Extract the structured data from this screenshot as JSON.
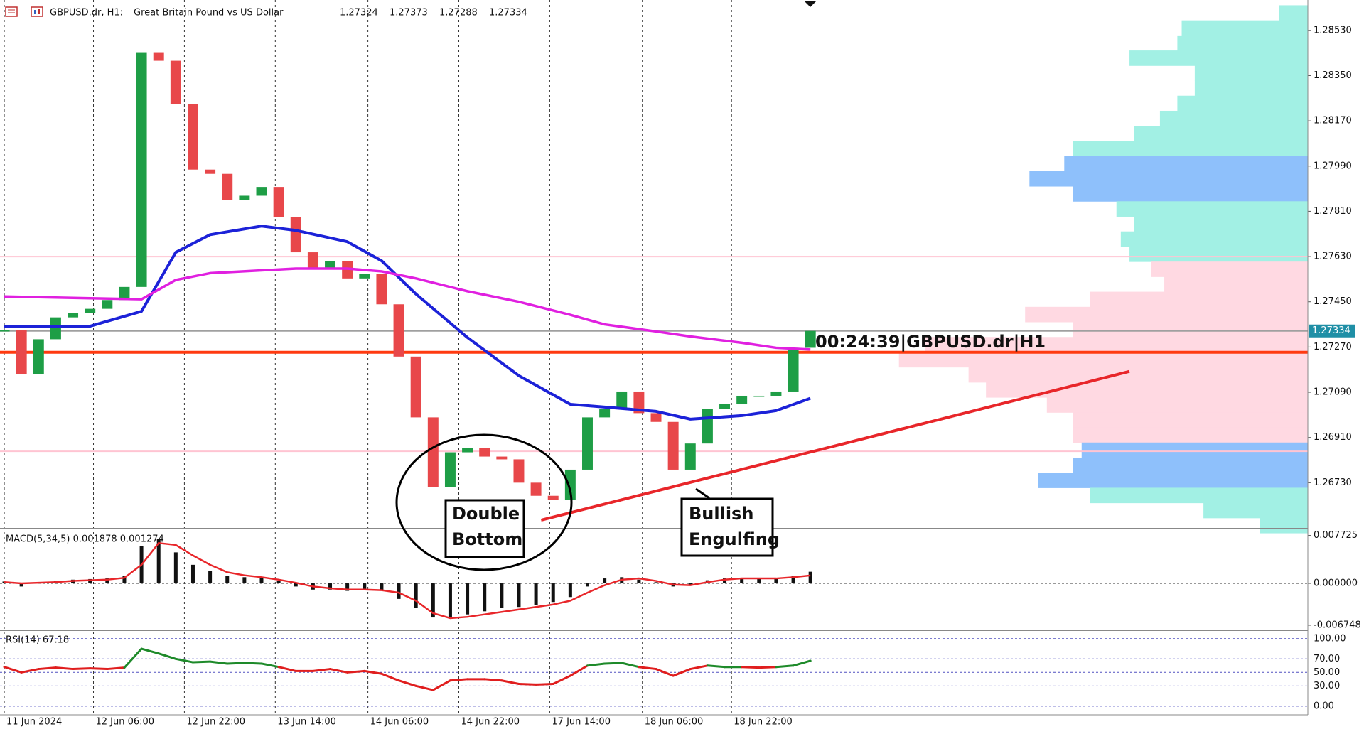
{
  "chart_data": {
    "type": "candlestick",
    "header": {
      "symbol": "GBPUSD.dr, H1:",
      "description": "Great Britain Pound vs US Dollar",
      "ohlc": [
        1.27324,
        1.27373,
        1.27288,
        1.27334
      ]
    },
    "close": [
      1.27336,
      1.27163,
      1.27301,
      1.27388,
      1.27405,
      1.27422,
      1.27457,
      1.27509,
      1.28443,
      1.28409,
      1.28236,
      1.27976,
      1.27959,
      1.27855,
      1.27872,
      1.27907,
      1.27786,
      1.27647,
      1.27578,
      1.27613,
      1.27543,
      1.27561,
      1.2744,
      1.27232,
      1.2699,
      1.26713,
      1.26851,
      1.26869,
      1.26834,
      1.26823,
      1.2673,
      1.26678,
      1.26661,
      1.26782,
      1.2699,
      1.27024,
      1.27093,
      1.27007,
      1.26972,
      1.26782,
      1.26886,
      1.27024,
      1.27042,
      1.27076,
      1.27076,
      1.27093,
      1.27267,
      1.27334
    ],
    "up_color": "#1e9e46",
    "down_color": "#e8474a",
    "series": [
      {
        "color": "#1c22d8",
        "x": [
          0,
          5,
          8,
          10,
          12,
          15,
          17,
          20,
          22,
          24,
          27,
          30,
          33,
          35,
          38,
          40,
          43,
          45,
          47
        ],
        "values": [
          1.27353,
          1.27353,
          1.27412,
          1.27647,
          1.27717,
          1.27751,
          1.27734,
          1.27689,
          1.27613,
          1.27481,
          1.27308,
          1.27156,
          1.27042,
          1.27031,
          1.27014,
          1.26983,
          1.26997,
          1.27017,
          1.27066
        ]
      },
      {
        "color": "#e020e0",
        "x": [
          0,
          5,
          8,
          10,
          12,
          15,
          17,
          20,
          22,
          24,
          27,
          30,
          33,
          35,
          38,
          40,
          43,
          45,
          47
        ],
        "values": [
          1.27471,
          1.27464,
          1.2746,
          1.27537,
          1.27564,
          1.27575,
          1.27582,
          1.27582,
          1.27571,
          1.27543,
          1.27492,
          1.2745,
          1.27398,
          1.2736,
          1.27332,
          1.27312,
          1.27287,
          1.27267,
          1.2726
        ]
      }
    ],
    "levels": [
      {
        "value": 1.2763,
        "color": "#ffc4d2",
        "thick": false
      },
      {
        "value": 1.26855,
        "color": "#ffc4d2",
        "thick": false
      },
      {
        "value": 1.27249,
        "color": "#ff3a10",
        "thick": true
      },
      {
        "value": 1.27334,
        "color": "#a0a0a0",
        "thick": false
      }
    ],
    "trendline": {
      "x": [
        31.3,
        65.6
      ],
      "values": [
        1.26581,
        1.27173
      ],
      "color": "#e8262a"
    },
    "profile": {
      "levels": [
        1.286,
        1.2854,
        1.2848,
        1.2842,
        1.2836,
        1.283,
        1.2824,
        1.2818,
        1.2812,
        1.2806,
        1.28,
        1.2794,
        1.2788,
        1.2782,
        1.2776,
        1.277,
        1.2764,
        1.2758,
        1.2752,
        1.2746,
        1.274,
        1.2734,
        1.2728,
        1.2722,
        1.2716,
        1.271,
        1.2704,
        1.2698,
        1.2692,
        1.2686,
        1.268,
        1.2674,
        1.2668,
        1.2662,
        1.2656
      ],
      "volumes": [
        33,
        145,
        150,
        205,
        130,
        130,
        150,
        170,
        200,
        270,
        280,
        320,
        270,
        220,
        200,
        215,
        205,
        180,
        165,
        250,
        325,
        270,
        440,
        470,
        390,
        370,
        300,
        270,
        270,
        260,
        270,
        310,
        250,
        120,
        55
      ],
      "colors": [
        "#a2f0e4",
        "#a2f0e4",
        "#a2f0e4",
        "#a2f0e4",
        "#a2f0e4",
        "#a2f0e4",
        "#a2f0e4",
        "#a2f0e4",
        "#a2f0e4",
        "#a2f0e4",
        "#8ec0fb",
        "#8ec0fb",
        "#8ec0fb",
        "#a2f0e4",
        "#a2f0e4",
        "#a2f0e4",
        "#a2f0e4",
        "#ffd9e2",
        "#ffd9e2",
        "#ffd9e2",
        "#ffd9e2",
        "#ffd9e2",
        "#ffd9e2",
        "#ffd9e2",
        "#ffd9e2",
        "#ffd9e2",
        "#ffd9e2",
        "#ffd9e2",
        "#ffd9e2",
        "#8ec0fb",
        "#8ec0fb",
        "#8ec0fb",
        "#a2f0e4",
        "#a2f0e4",
        "#a2f0e4"
      ]
    },
    "xlim": [
      -0.25,
      76
    ],
    "xticks": [
      {
        "value": 0,
        "label": "11 Jun 2024"
      },
      {
        "value": 5.2,
        "label": "12 Jun 06:00"
      },
      {
        "value": 10.5,
        "label": "12 Jun 22:00"
      },
      {
        "value": 15.8,
        "label": "13 Jun 14:00"
      },
      {
        "value": 21.2,
        "label": "14 Jun 06:00"
      },
      {
        "value": 26.5,
        "label": "14 Jun 22:00"
      },
      {
        "value": 31.8,
        "label": "17 Jun 14:00"
      },
      {
        "value": 37.2,
        "label": "18 Jun 06:00"
      },
      {
        "value": 42.4,
        "label": "18 Jun 22:00"
      }
    ],
    "ylim": [
      1.2655,
      1.28651
    ],
    "yticks": [
      {
        "value": 1.2853,
        "label": "1.28530"
      },
      {
        "value": 1.2835,
        "label": "1.28350"
      },
      {
        "value": 1.2817,
        "label": "1.28170"
      },
      {
        "value": 1.2799,
        "label": "1.27990"
      },
      {
        "value": 1.2781,
        "label": "1.27810"
      },
      {
        "value": 1.2763,
        "label": "1.27630"
      },
      {
        "value": 1.2745,
        "label": "1.27450"
      },
      {
        "value": 1.2727,
        "label": "1.27270"
      },
      {
        "value": 1.2709,
        "label": "1.27090"
      },
      {
        "value": 1.2691,
        "label": "1.26910"
      },
      {
        "value": 1.2673,
        "label": "1.26730"
      }
    ],
    "price_label": {
      "value": 1.27334,
      "label": "1.27334"
    },
    "annotations": {
      "double_bottom": [
        "Double",
        "Bottom"
      ],
      "bullish_engulfing": [
        "Bullish",
        "Engulfing"
      ],
      "timer": "00:24:39|GBPUSD.dr|H1"
    },
    "macd": {
      "title": "MACD(5,34,5) 0.001878 0.001274",
      "histogram": [
        0.0003,
        -0.0005,
        0.0002,
        0.0004,
        0.0006,
        0.0007,
        0.0008,
        0.0012,
        0.006,
        0.0072,
        0.005,
        0.003,
        0.002,
        0.0012,
        0.001,
        0.001,
        0.0004,
        -0.0005,
        -0.001,
        -0.001,
        -0.0012,
        -0.001,
        -0.0012,
        -0.0025,
        -0.004,
        -0.0055,
        -0.0055,
        -0.005,
        -0.0045,
        -0.004,
        -0.0038,
        -0.0035,
        -0.003,
        -0.0022,
        -0.0005,
        0.0008,
        0.001,
        0.0006,
        0.0002,
        -0.0005,
        -0.0003,
        0.0005,
        0.0008,
        0.0009,
        0.0008,
        0.0009,
        0.0012,
        0.001878
      ],
      "signal": [
        0.0002,
        0,
        0.0001,
        0.0002,
        0.0004,
        0.0005,
        0.0006,
        0.0009,
        0.003,
        0.0065,
        0.0062,
        0.0045,
        0.003,
        0.0018,
        0.0013,
        0.001,
        0.0006,
        0.0001,
        -0.0005,
        -0.0008,
        -0.001,
        -0.001,
        -0.0011,
        -0.0015,
        -0.0028,
        -0.0048,
        -0.0056,
        -0.0054,
        -0.005,
        -0.0046,
        -0.0042,
        -0.0038,
        -0.0034,
        -0.0028,
        -0.0015,
        -0.0003,
        0.0006,
        0.0008,
        0.0004,
        -0.0002,
        -0.0003,
        0.0002,
        0.0006,
        0.0008,
        0.0008,
        0.0008,
        0.001,
        0.001274
      ],
      "signal_color": "#e8262a",
      "ylim": [
        -0.00744,
        0.00871
      ],
      "yticks": [
        0.007725,
        {
          "value": 0,
          "label": "0.000000"
        },
        -0.006748
      ]
    },
    "rsi": {
      "title": "RSI(14) 67.18",
      "values": [
        58,
        50,
        55,
        57,
        55,
        56,
        55,
        57,
        85,
        78,
        70,
        65,
        66,
        63,
        64,
        63,
        58,
        52,
        52,
        55,
        50,
        52,
        48,
        38,
        30,
        24,
        38,
        40,
        40,
        38,
        33,
        32,
        33,
        45,
        60,
        63,
        64,
        58,
        55,
        45,
        55,
        60,
        58,
        58,
        57,
        58,
        60,
        67.18
      ],
      "up_color": "#1e8a2a",
      "down_color": "#e01e1e",
      "ylim": [
        -12.8,
        110.3
      ],
      "yticks": [
        {
          "value": 100,
          "label": "100.00"
        },
        {
          "value": 70,
          "label": "70.00"
        },
        {
          "value": 50,
          "label": "50.00"
        },
        {
          "value": 30,
          "label": "30.00"
        },
        {
          "value": 0,
          "label": "0.00"
        }
      ]
    }
  }
}
